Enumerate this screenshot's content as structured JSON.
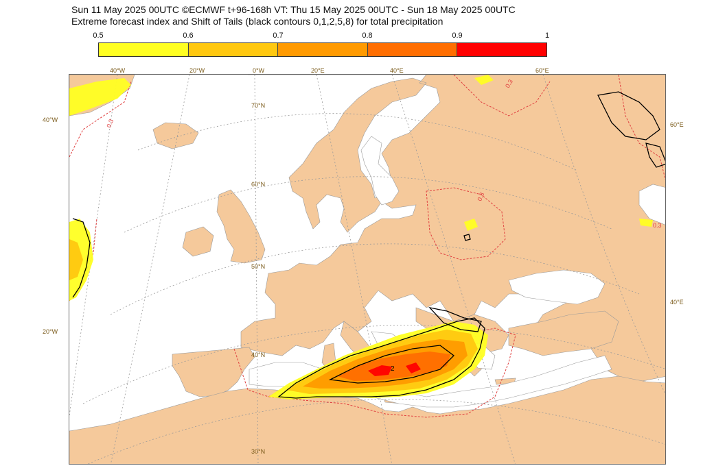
{
  "header": {
    "line1": "Sun 11 May 2025 00UTC ©ECMWF t+96-168h  VT: Thu 15 May 2025 00UTC - Sun 18 May 2025 00UTC",
    "line2": "Extreme forecast index and Shift of Tails (black contours 0,1,2,5,8) for total precipitation"
  },
  "colorbar": {
    "ticks": [
      "0.5",
      "0.6",
      "0.7",
      "0.8",
      "0.9",
      "1"
    ],
    "colors": [
      "#ffff22",
      "#ffc810",
      "#ff9a00",
      "#ff6e00",
      "#ff0000"
    ]
  },
  "map": {
    "top_lon_labels": [
      "40°W",
      "20°W",
      "0°W",
      "20°E",
      "40°E",
      "60°E"
    ],
    "lat_labels": [
      "70°N",
      "60°N",
      "50°N",
      "40°N",
      "30°N"
    ],
    "left_labels": [
      "40°W",
      "20°W"
    ],
    "right_labels": [
      "60°E",
      "40°E"
    ],
    "contour_label_sot": "2",
    "contour_label_efi": "0.3",
    "colors": {
      "land": "#f5c99b",
      "sea": "#ffffff",
      "border": "#9a9a9a",
      "grid": "#999999",
      "efi_contour": "#e04040",
      "sot_contour": "#000000"
    }
  }
}
